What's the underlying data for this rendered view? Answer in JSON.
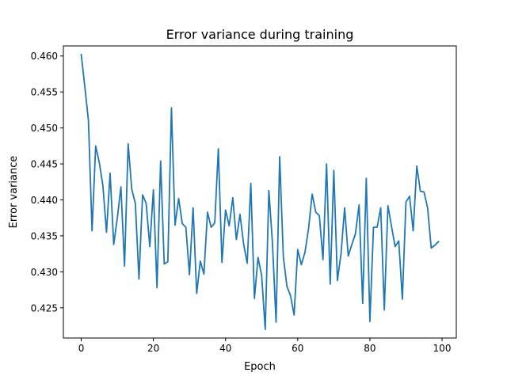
{
  "chart_data": {
    "type": "line",
    "title": "Error variance during training",
    "xlabel": "Epoch",
    "ylabel": "Error variance",
    "xlim": [
      -4.95,
      103.95
    ],
    "ylim": [
      0.4208,
      0.4614
    ],
    "xticks": [
      0,
      20,
      40,
      60,
      80,
      100
    ],
    "xtick_labels": [
      "0",
      "20",
      "40",
      "60",
      "80",
      "100"
    ],
    "yticks": [
      0.425,
      0.43,
      0.435,
      0.44,
      0.445,
      0.45,
      0.455,
      0.46
    ],
    "ytick_labels": [
      "0.425",
      "0.430",
      "0.435",
      "0.440",
      "0.445",
      "0.450",
      "0.455",
      "0.460"
    ],
    "grid": false,
    "legend": "none",
    "line_color": "#1f77b4",
    "series": [
      {
        "x": [
          0,
          1,
          2,
          3,
          4,
          5,
          6,
          7,
          8,
          9,
          10,
          11,
          12,
          13,
          14,
          15,
          16,
          17,
          18,
          19,
          20,
          21,
          22,
          23,
          24,
          25,
          26,
          27,
          28,
          29,
          30,
          31,
          32,
          33,
          34,
          35,
          36,
          37,
          38,
          39,
          40,
          41,
          42,
          43,
          44,
          45,
          46,
          47,
          48,
          49,
          50,
          51,
          52,
          53,
          54,
          55,
          56,
          57,
          58,
          59,
          60,
          61,
          62,
          63,
          64,
          65,
          66,
          67,
          68,
          69,
          70,
          71,
          72,
          73,
          74,
          75,
          76,
          77,
          78,
          79,
          80,
          81,
          82,
          83,
          84,
          85,
          86,
          87,
          88,
          89,
          90,
          91,
          92,
          93,
          94,
          95,
          96,
          97,
          98,
          99
        ],
        "values": [
          0.4602,
          0.4557,
          0.451,
          0.4357,
          0.4475,
          0.4452,
          0.442,
          0.4355,
          0.4437,
          0.4338,
          0.4375,
          0.4418,
          0.4308,
          0.4478,
          0.4415,
          0.4395,
          0.429,
          0.4407,
          0.4395,
          0.4335,
          0.4414,
          0.4278,
          0.4454,
          0.4311,
          0.4314,
          0.4528,
          0.4365,
          0.4402,
          0.4367,
          0.4362,
          0.4296,
          0.4389,
          0.427,
          0.4315,
          0.4297,
          0.4383,
          0.4362,
          0.4368,
          0.4471,
          0.4313,
          0.4386,
          0.4364,
          0.4403,
          0.4345,
          0.438,
          0.4339,
          0.4312,
          0.4423,
          0.4263,
          0.432,
          0.4295,
          0.422,
          0.4413,
          0.434,
          0.423,
          0.446,
          0.4322,
          0.428,
          0.4267,
          0.424,
          0.4331,
          0.431,
          0.4327,
          0.436,
          0.4408,
          0.4383,
          0.4378,
          0.4317,
          0.445,
          0.4283,
          0.4441,
          0.4288,
          0.4325,
          0.4389,
          0.4322,
          0.4338,
          0.4353,
          0.4393,
          0.4256,
          0.443,
          0.4231,
          0.4362,
          0.4362,
          0.4389,
          0.4247,
          0.4392,
          0.4363,
          0.4335,
          0.4343,
          0.4262,
          0.4397,
          0.4405,
          0.4357,
          0.4447,
          0.4412,
          0.4411,
          0.4389,
          0.4333,
          0.4337,
          0.4342
        ]
      }
    ]
  }
}
